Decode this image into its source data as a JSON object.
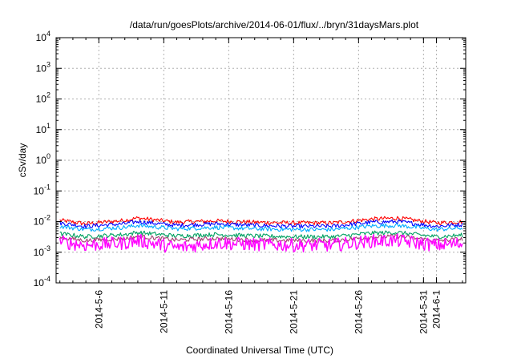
{
  "chart_data": {
    "type": "line",
    "title": "/data/run/goesPlots/archive/2014-06-01/flux/../bryn/31daysMars.plot",
    "xlabel": "Coordinated Universal Time (UTC)",
    "ylabel": "cSv/day",
    "y_scale": "log",
    "ylim_exponents": [
      -4,
      4
    ],
    "y_tick_base": "10",
    "y_tick_exponents": [
      "-4",
      "-3",
      "-2",
      "-1",
      "0",
      "1",
      "2",
      "3",
      "4"
    ],
    "xlim": [
      "2014-05-02T17:00",
      "2014-06-03T06:00"
    ],
    "x_ticks": [
      "2014-5-6",
      "2014-5-11",
      "2014-5-16",
      "2014-5-21",
      "2014-5-26",
      "2014-5-31",
      "2014-6-1"
    ],
    "grid": true,
    "legend": "none",
    "series": [
      {
        "color": "#ff0000",
        "values_by_day": [
          {
            "x": "2014-05-03",
            "y": 0.011
          },
          {
            "x": "2014-05-05",
            "y": 0.0085
          },
          {
            "x": "2014-05-08",
            "y": 0.011
          },
          {
            "x": "2014-05-09",
            "y": 0.013
          },
          {
            "x": "2014-05-12",
            "y": 0.0095
          },
          {
            "x": "2014-05-15",
            "y": 0.0105
          },
          {
            "x": "2014-05-18",
            "y": 0.0095
          },
          {
            "x": "2014-05-21",
            "y": 0.009
          },
          {
            "x": "2014-05-24",
            "y": 0.009
          },
          {
            "x": "2014-05-27",
            "y": 0.012
          },
          {
            "x": "2014-05-29",
            "y": 0.013
          },
          {
            "x": "2014-06-01",
            "y": 0.009
          },
          {
            "x": "2014-06-03",
            "y": 0.01
          }
        ]
      },
      {
        "color": "#0000ff",
        "values_by_day": [
          {
            "x": "2014-05-03",
            "y": 0.009
          },
          {
            "x": "2014-05-05",
            "y": 0.007
          },
          {
            "x": "2014-05-08",
            "y": 0.0085
          },
          {
            "x": "2014-05-09",
            "y": 0.01
          },
          {
            "x": "2014-05-12",
            "y": 0.0075
          },
          {
            "x": "2014-05-15",
            "y": 0.0085
          },
          {
            "x": "2014-05-18",
            "y": 0.0075
          },
          {
            "x": "2014-05-21",
            "y": 0.007
          },
          {
            "x": "2014-05-24",
            "y": 0.007
          },
          {
            "x": "2014-05-27",
            "y": 0.0095
          },
          {
            "x": "2014-05-29",
            "y": 0.01
          },
          {
            "x": "2014-06-01",
            "y": 0.007
          },
          {
            "x": "2014-06-03",
            "y": 0.008
          }
        ]
      },
      {
        "color": "#00aaff",
        "values_by_day": [
          {
            "x": "2014-05-03",
            "y": 0.007
          },
          {
            "x": "2014-05-05",
            "y": 0.0055
          },
          {
            "x": "2014-05-08",
            "y": 0.0065
          },
          {
            "x": "2014-05-09",
            "y": 0.0075
          },
          {
            "x": "2014-05-12",
            "y": 0.0058
          },
          {
            "x": "2014-05-15",
            "y": 0.0065
          },
          {
            "x": "2014-05-18",
            "y": 0.0058
          },
          {
            "x": "2014-05-21",
            "y": 0.0055
          },
          {
            "x": "2014-05-24",
            "y": 0.0055
          },
          {
            "x": "2014-05-27",
            "y": 0.0072
          },
          {
            "x": "2014-05-29",
            "y": 0.0075
          },
          {
            "x": "2014-06-01",
            "y": 0.0055
          },
          {
            "x": "2014-06-03",
            "y": 0.0062
          }
        ]
      },
      {
        "color": "#00a060",
        "values_by_day": [
          {
            "x": "2014-05-03",
            "y": 0.004
          },
          {
            "x": "2014-05-05",
            "y": 0.0032
          },
          {
            "x": "2014-05-08",
            "y": 0.0038
          },
          {
            "x": "2014-05-09",
            "y": 0.0044
          },
          {
            "x": "2014-05-12",
            "y": 0.0034
          },
          {
            "x": "2014-05-15",
            "y": 0.0038
          },
          {
            "x": "2014-05-18",
            "y": 0.0034
          },
          {
            "x": "2014-05-21",
            "y": 0.0032
          },
          {
            "x": "2014-05-24",
            "y": 0.0032
          },
          {
            "x": "2014-05-27",
            "y": 0.0042
          },
          {
            "x": "2014-05-29",
            "y": 0.0044
          },
          {
            "x": "2014-06-01",
            "y": 0.0032
          },
          {
            "x": "2014-06-03",
            "y": 0.0036
          }
        ]
      },
      {
        "color": "#a04070",
        "values_by_day": [
          {
            "x": "2014-05-03",
            "y": 0.003
          },
          {
            "x": "2014-05-05",
            "y": 0.0024
          },
          {
            "x": "2014-05-08",
            "y": 0.0028
          },
          {
            "x": "2014-05-09",
            "y": 0.0033
          },
          {
            "x": "2014-05-12",
            "y": 0.0025
          },
          {
            "x": "2014-05-15",
            "y": 0.0028
          },
          {
            "x": "2014-05-18",
            "y": 0.0025
          },
          {
            "x": "2014-05-21",
            "y": 0.0024
          },
          {
            "x": "2014-05-24",
            "y": 0.0024
          },
          {
            "x": "2014-05-27",
            "y": 0.0031
          },
          {
            "x": "2014-05-29",
            "y": 0.0033
          },
          {
            "x": "2014-06-01",
            "y": 0.0024
          },
          {
            "x": "2014-06-03",
            "y": 0.0027
          }
        ]
      },
      {
        "color": "#ff00ff",
        "values_by_day": [
          {
            "x": "2014-05-03",
            "y": 0.0022
          },
          {
            "x": "2014-05-05",
            "y": 0.0017
          },
          {
            "x": "2014-05-08",
            "y": 0.002
          },
          {
            "x": "2014-05-09",
            "y": 0.0024
          },
          {
            "x": "2014-05-12",
            "y": 0.0014
          },
          {
            "x": "2014-05-15",
            "y": 0.002
          },
          {
            "x": "2014-05-18",
            "y": 0.0018
          },
          {
            "x": "2014-05-21",
            "y": 0.0017
          },
          {
            "x": "2014-05-24",
            "y": 0.0017
          },
          {
            "x": "2014-05-27",
            "y": 0.0023
          },
          {
            "x": "2014-05-29",
            "y": 0.0024
          },
          {
            "x": "2014-06-01",
            "y": 0.0017
          },
          {
            "x": "2014-06-03",
            "y": 0.0019
          }
        ]
      }
    ]
  }
}
